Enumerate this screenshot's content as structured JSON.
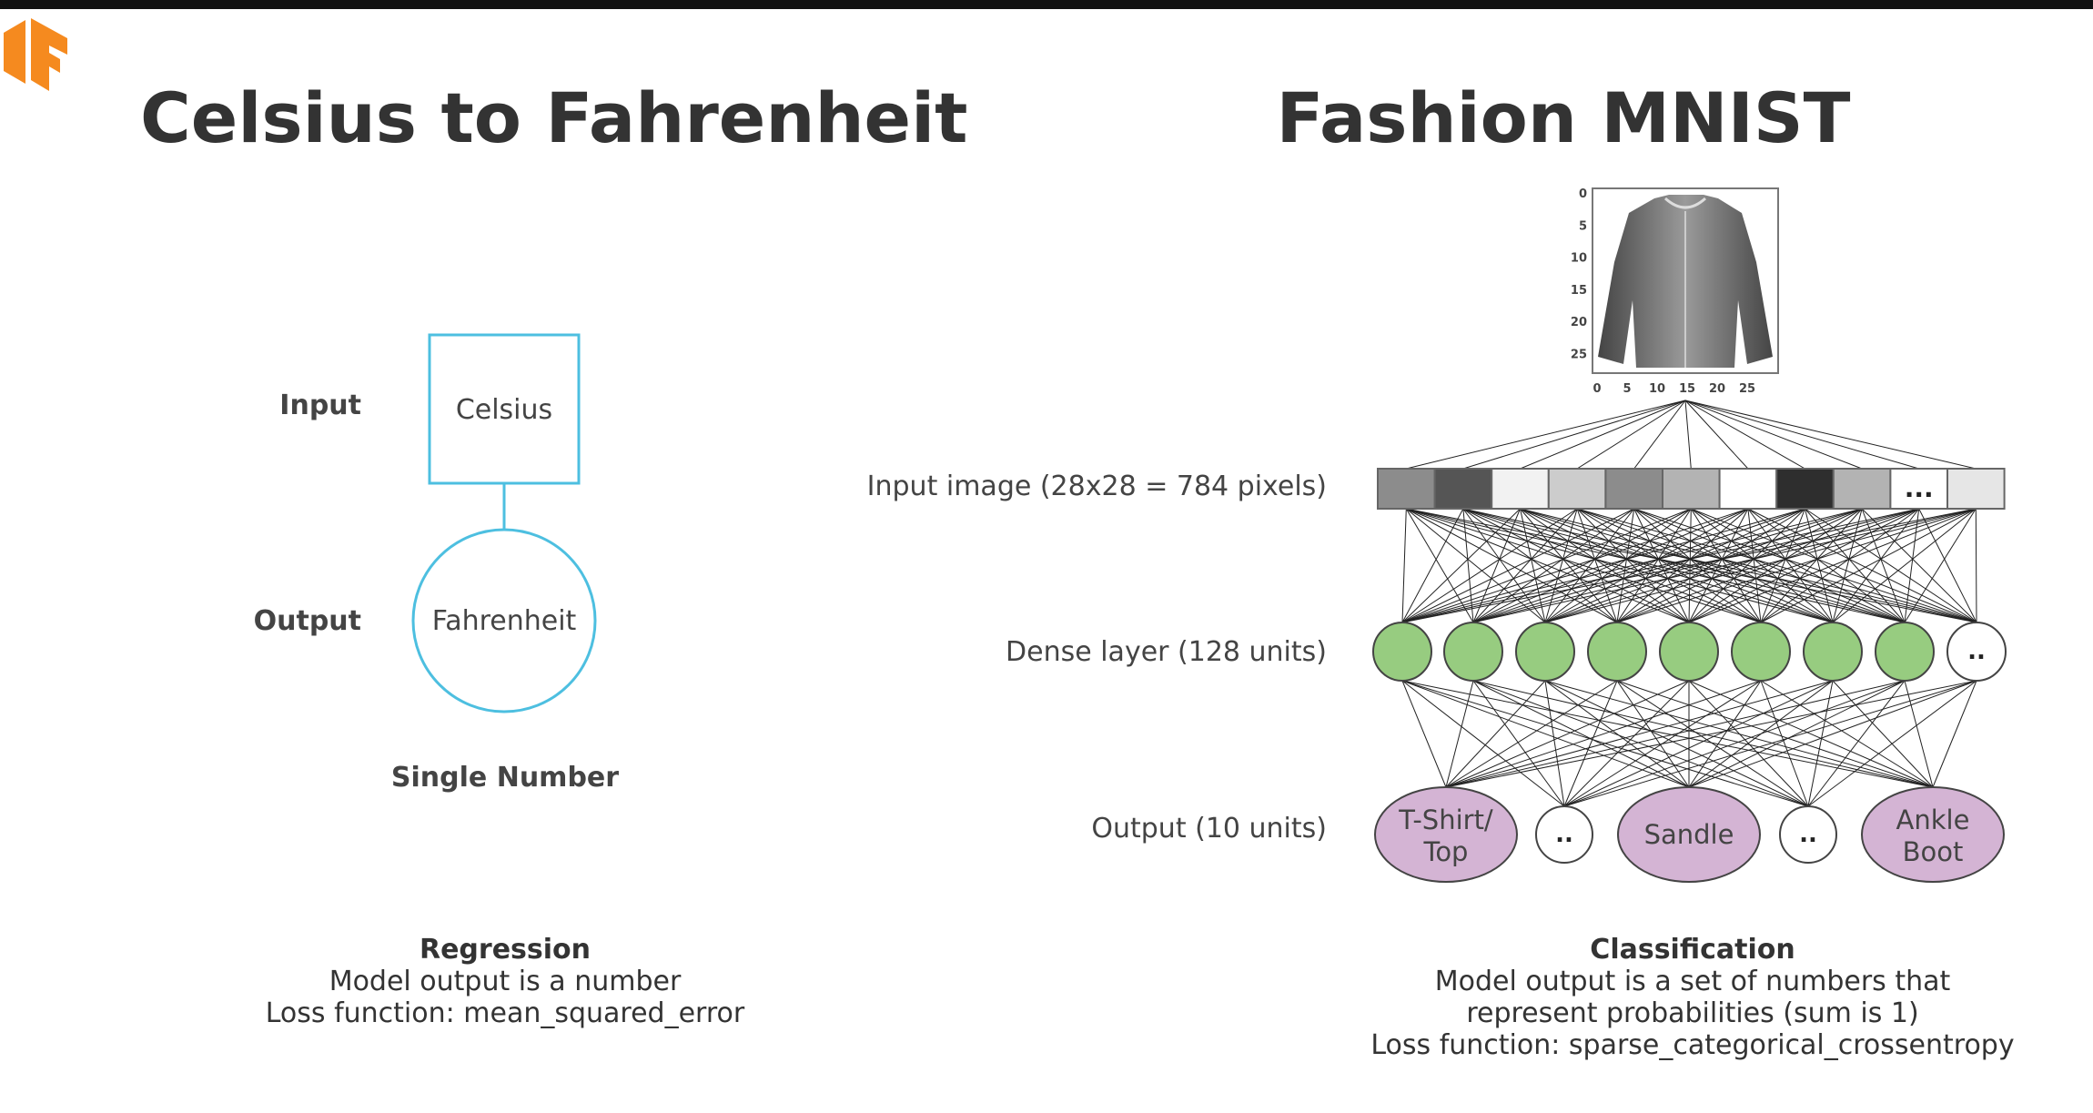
{
  "left_panel": {
    "title": "Celsius to Fahrenheit",
    "input_row_label": "Input",
    "input_node_text": "Celsius",
    "output_row_label": "Output",
    "output_node_text": "Fahrenheit",
    "node_caption": "Single Number",
    "summary_heading": "Regression",
    "summary_lines": [
      "Model output is a number",
      "Loss function: mean_squared_error"
    ]
  },
  "right_panel": {
    "title": "Fashion MNIST",
    "image_y_ticks": [
      "0",
      "5",
      "10",
      "15",
      "20",
      "25"
    ],
    "image_x_ticks": [
      "0",
      "5",
      "10",
      "15",
      "20",
      "25"
    ],
    "input_layer_label": "Input image (28x28 = 784 pixels)",
    "input_ellipsis": "...",
    "dense_layer_label": "Dense layer (128 units)",
    "dense_ellipsis": "..",
    "output_layer_label": "Output (10 units)",
    "output_ellipsis": "..",
    "output_classes": [
      {
        "line1": "T-Shirt/",
        "line2": "Top"
      },
      {
        "line1": "Sandle",
        "line2": ""
      },
      {
        "line1": "Ankle",
        "line2": "Boot"
      }
    ],
    "summary_heading": "Classification",
    "summary_lines": [
      "Model output is a set of numbers that",
      "represent probabilities (sum is 1)",
      "Loss function: sparse_categorical_crossentropy"
    ]
  },
  "colors": {
    "logo": "#F58A1F",
    "left_diagram": "#4DBFE0",
    "dense_node": "#97CC80",
    "output_node": "#D4B4D4",
    "title_text": "#333333",
    "label_text": "#444444",
    "input_pixel_shades": [
      "#8C8C8C",
      "#555555",
      "#F2F2F2",
      "#CCCCCC",
      "#8C8C8C",
      "#B3B3B3",
      "#FFFFFF",
      "#2E2E2E",
      "#B3B3B3",
      "#FFFFFF",
      "#E6E6E6"
    ]
  }
}
